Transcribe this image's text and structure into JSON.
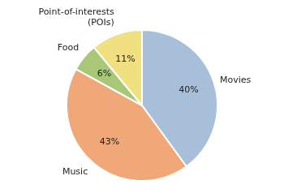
{
  "chart_data": {
    "type": "pie",
    "categories": [
      "Movies",
      "Music",
      "Food",
      "Point-of-interests\n(POIs)"
    ],
    "values": [
      40,
      43,
      6,
      11
    ],
    "value_labels": [
      "40%",
      "43%",
      "6%",
      "11%"
    ],
    "colors": [
      "#a8bfda",
      "#f0a878",
      "#a8c878",
      "#f0e080"
    ],
    "data_labels": true,
    "legend": false
  }
}
